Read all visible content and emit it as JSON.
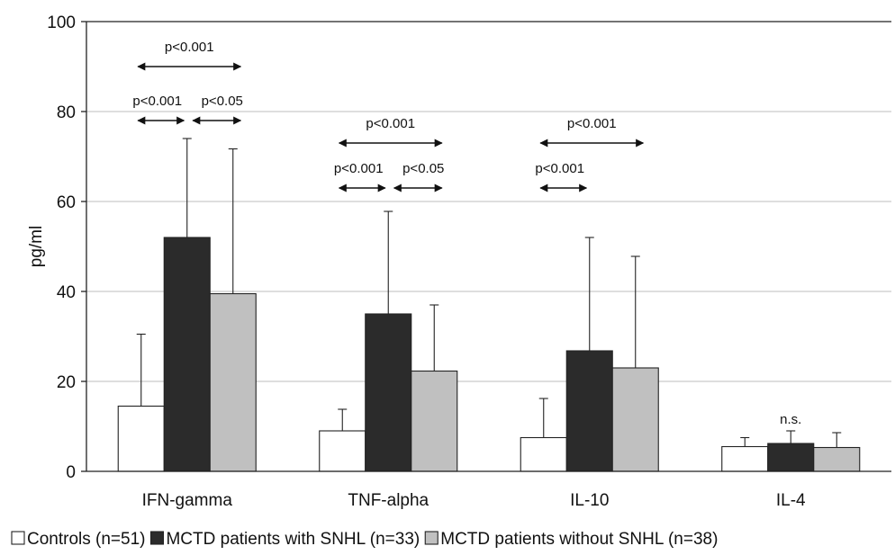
{
  "chart_data": {
    "type": "bar",
    "ylabel": "pg/ml",
    "ylim": [
      0,
      100
    ],
    "yticks": [
      0,
      20,
      40,
      60,
      80,
      100
    ],
    "grid": true,
    "legend_placement": "bottom",
    "categories": [
      "IFN-gamma",
      "TNF-alpha",
      "IL-10",
      "IL-4"
    ],
    "series": [
      {
        "name": "Controls (n=51)",
        "color": "#ffffff",
        "values": [
          14.5,
          9,
          7.5,
          5.5
        ],
        "error_upper": [
          30.5,
          13.8,
          16.2,
          7.5
        ]
      },
      {
        "name": "MCTD patients with SNHL (n=33)",
        "color": "#2b2b2b",
        "values": [
          52,
          35,
          26.8,
          6.2
        ],
        "error_upper": [
          74,
          57.8,
          52,
          9
        ]
      },
      {
        "name": "MCTD patients without SNHL (n=38)",
        "color": "#c0c0c0",
        "values": [
          39.5,
          22.3,
          23,
          5.3
        ],
        "error_upper": [
          71.7,
          37,
          47.8,
          8.6
        ]
      }
    ],
    "annotations": [
      {
        "text": "p<0.001",
        "category": 0,
        "from": 0,
        "to": 2,
        "y": 90
      },
      {
        "text": "p<0.001",
        "category": 0,
        "from": 0,
        "to": 1,
        "y": 78
      },
      {
        "text": "p<0.05",
        "category": 0,
        "from": 1,
        "to": 2,
        "y": 78
      },
      {
        "text": "p<0.001",
        "category": 1,
        "from": 0,
        "to": 2,
        "y": 73
      },
      {
        "text": "p<0.001",
        "category": 1,
        "from": 0,
        "to": 1,
        "y": 63
      },
      {
        "text": "p<0.05",
        "category": 1,
        "from": 1,
        "to": 2,
        "y": 63
      },
      {
        "text": "p<0.001",
        "category": 2,
        "from": 0,
        "to": 2,
        "y": 73
      },
      {
        "text": "p<0.001",
        "category": 2,
        "from": 0,
        "to": 1,
        "y": 63
      },
      {
        "text": "n.s.",
        "category": 3,
        "y": 14
      }
    ]
  }
}
